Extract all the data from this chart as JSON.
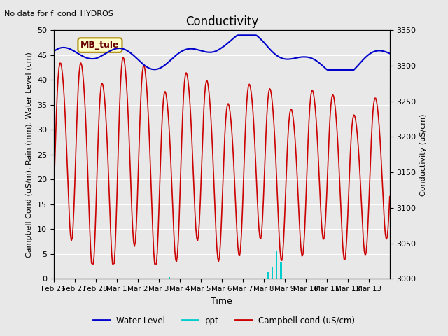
{
  "title": "Conductivity",
  "subtitle": "No data for f_cond_HYDROS",
  "xlabel": "Time",
  "ylabel_left": "Campbell Cond (uS/m), Rain (mm), Water Level (cm)",
  "ylabel_right": "Conductivity (uS/cm)",
  "xlim": [
    0,
    16
  ],
  "ylim_left": [
    0,
    50
  ],
  "ylim_right": [
    3000,
    3350
  ],
  "xtick_labels": [
    "Feb 26",
    "Feb 27",
    "Feb 28",
    "Mar 1",
    "Mar 2",
    "Mar 3",
    "Mar 4",
    "Mar 5",
    "Mar 6",
    "Mar 7",
    "Mar 8",
    "Mar 9",
    "Mar 10",
    "Mar 11",
    "Mar 12",
    "Mar 13"
  ],
  "xtick_positions": [
    0,
    1,
    2,
    3,
    4,
    5,
    6,
    7,
    8,
    9,
    10,
    11,
    12,
    13,
    14,
    15
  ],
  "yticks_left": [
    0,
    5,
    10,
    15,
    20,
    25,
    30,
    35,
    40,
    45,
    50
  ],
  "yticks_right": [
    3000,
    3050,
    3100,
    3150,
    3200,
    3250,
    3300,
    3350
  ],
  "bg_color": "#e8e8e8",
  "plot_bg_color": "#e8e8e8",
  "grid_color": "#ffffff",
  "legend_items": [
    "Water Level",
    "ppt",
    "Campbell cond (uS/cm)"
  ],
  "legend_colors": [
    "#0000cc",
    "#00cccc",
    "#cc0000"
  ],
  "annotation_box": "MB_tule",
  "annotation_box_bg": "#ffffcc",
  "annotation_box_border": "#aa8800"
}
